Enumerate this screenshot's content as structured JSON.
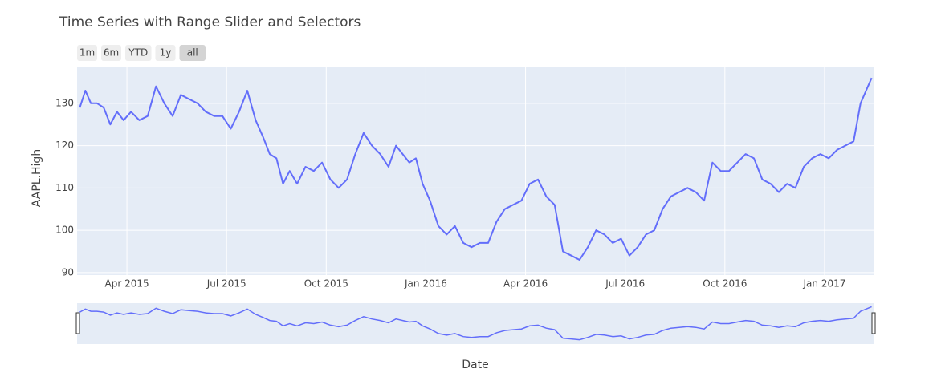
{
  "chart_data": {
    "type": "line",
    "title": "Time Series with Range Slider and Selectors",
    "x_label": "Date",
    "y_label": "AAPL.High",
    "buttons": [
      "1m",
      "6m",
      "YTD",
      "1y",
      "all"
    ],
    "active_button": "all",
    "x": [
      "2015-02",
      "2015-02",
      "2015-02",
      "2015-03",
      "2015-03",
      "2015-03",
      "2015-03",
      "2015-03",
      "2015-04",
      "2015-04",
      "2015-04",
      "2015-04",
      "2015-05",
      "2015-05",
      "2015-05",
      "2015-05",
      "2015-06",
      "2015-06",
      "2015-06",
      "2015-06",
      "2015-07",
      "2015-07",
      "2015-07",
      "2015-07",
      "2015-08",
      "2015-08",
      "2015-08",
      "2015-08",
      "2015-08",
      "2015-09",
      "2015-09",
      "2015-09",
      "2015-09",
      "2015-10",
      "2015-10",
      "2015-10",
      "2015-10",
      "2015-11",
      "2015-11",
      "2015-11",
      "2015-11",
      "2015-12",
      "2015-12",
      "2015-12",
      "2015-12",
      "2015-12",
      "2016-01",
      "2016-01",
      "2016-01",
      "2016-01",
      "2016-02",
      "2016-02",
      "2016-02",
      "2016-02",
      "2016-03",
      "2016-03",
      "2016-03",
      "2016-03",
      "2016-04",
      "2016-04",
      "2016-04",
      "2016-04",
      "2016-05",
      "2016-05",
      "2016-05",
      "2016-05",
      "2016-06",
      "2016-06",
      "2016-06",
      "2016-06",
      "2016-07",
      "2016-07",
      "2016-07",
      "2016-07",
      "2016-08",
      "2016-08",
      "2016-08",
      "2016-08",
      "2016-09",
      "2016-09",
      "2016-09",
      "2016-09",
      "2016-10",
      "2016-10",
      "2016-10",
      "2016-10",
      "2016-11",
      "2016-11",
      "2016-11",
      "2016-11",
      "2016-12",
      "2016-12",
      "2016-12",
      "2016-12",
      "2017-01",
      "2017-01",
      "2017-01",
      "2017-01",
      "2017-02",
      "2017-02",
      "2017-02"
    ],
    "series": [
      {
        "name": "AAPL.High",
        "color": "#636efa",
        "values": [
          129,
          133,
          130,
          130,
          129,
          125,
          128,
          126,
          128,
          126,
          127,
          134,
          130,
          127,
          132,
          131,
          130,
          128,
          127,
          127,
          124,
          128,
          133,
          126,
          122,
          118,
          117,
          111,
          114,
          111,
          115,
          114,
          116,
          112,
          110,
          112,
          118,
          123,
          120,
          118,
          115,
          120,
          118,
          116,
          117,
          111,
          107,
          101,
          99,
          101,
          97,
          96,
          97,
          97,
          102,
          105,
          106,
          107,
          111,
          112,
          108,
          106,
          95,
          94,
          93,
          96,
          100,
          99,
          97,
          98,
          94,
          96,
          99,
          100,
          105,
          108,
          109,
          110,
          109,
          107,
          116,
          114,
          114,
          116,
          118,
          117,
          112,
          111,
          109,
          111,
          110,
          115,
          117,
          118,
          117,
          119,
          120,
          121,
          130,
          133,
          136
        ]
      }
    ],
    "xlim": [
      "2015-02",
      "2017-02"
    ],
    "xticks": [
      {
        "value": "2015-04",
        "label": "Apr 2015"
      },
      {
        "value": "2015-07",
        "label": "Jul 2015"
      },
      {
        "value": "2015-10",
        "label": "Oct 2015"
      },
      {
        "value": "2016-01",
        "label": "Jan 2016"
      },
      {
        "value": "2016-04",
        "label": "Apr 2016"
      },
      {
        "value": "2016-07",
        "label": "Jul 2016"
      },
      {
        "value": "2016-10",
        "label": "Oct 2016"
      },
      {
        "value": "2017-01",
        "label": "Jan 2017"
      }
    ],
    "ylim": [
      89.4,
      138.5
    ],
    "yticks": [
      90,
      100,
      110,
      120,
      130
    ],
    "grid": true,
    "range_slider": true
  }
}
